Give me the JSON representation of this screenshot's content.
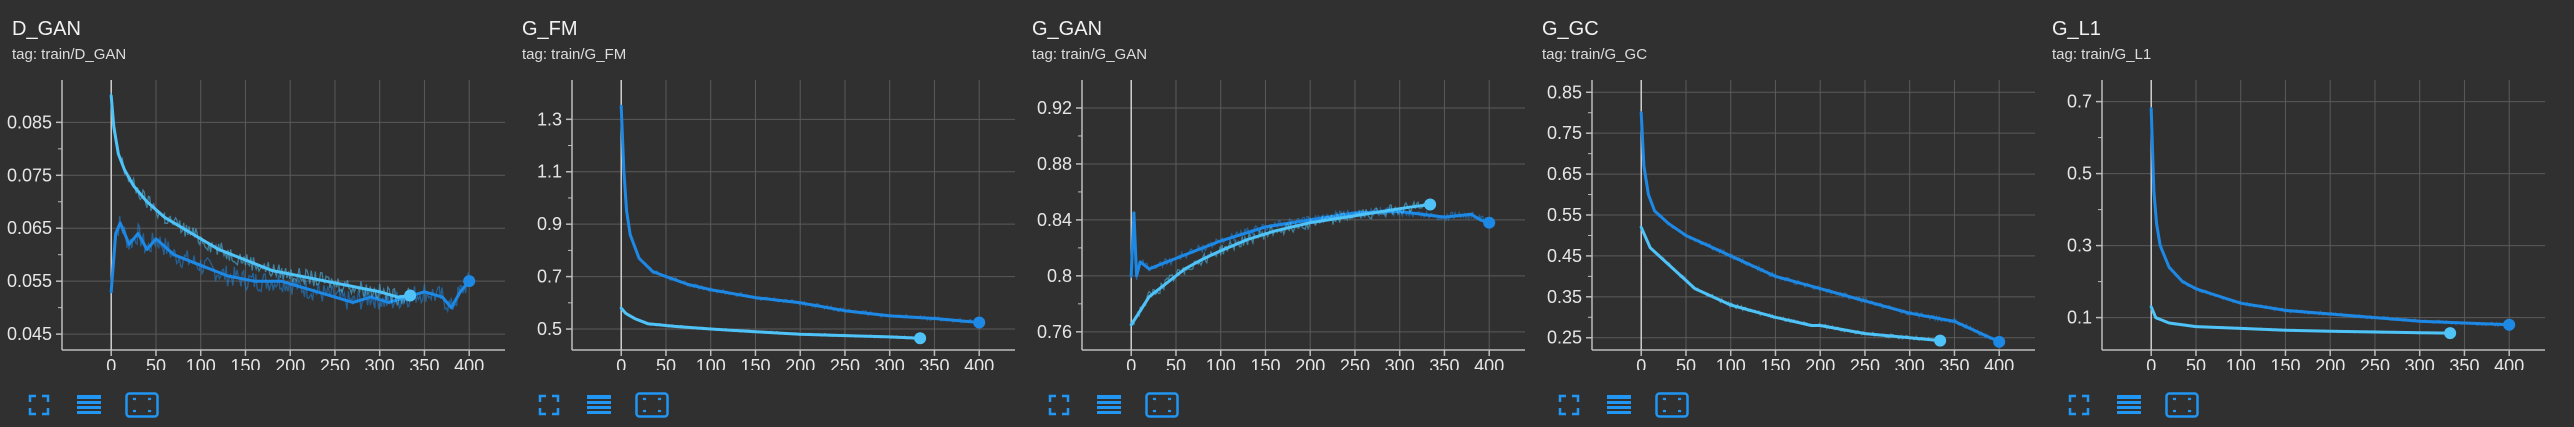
{
  "colors": {
    "background": "#303030",
    "grid": "#5a5a5a",
    "axis": "#bdbdbd",
    "series_dark": "#1e88e5",
    "series_light": "#4fc3f7",
    "icon": "#2196f3"
  },
  "toolbar_icons": [
    "fullscreen-icon",
    "data-table-icon",
    "fit-domain-icon"
  ],
  "chart_data": [
    {
      "type": "line",
      "title": "D_GAN",
      "subtitle": "tag: train/D_GAN",
      "x_ticks": [
        0,
        50,
        100,
        150,
        200,
        250,
        300,
        350,
        400
      ],
      "y_ticks": [
        "0.045",
        "0.055",
        "0.065",
        "0.075",
        "0.085"
      ],
      "xlim": [
        -55,
        440
      ],
      "ylim": [
        0.042,
        0.093
      ],
      "series": [
        {
          "color": "#1e88e5",
          "noise": 0.002,
          "points": [
            [
              0,
              0.053
            ],
            [
              5,
              0.064
            ],
            [
              10,
              0.066
            ],
            [
              20,
              0.062
            ],
            [
              30,
              0.064
            ],
            [
              40,
              0.061
            ],
            [
              50,
              0.063
            ],
            [
              70,
              0.06
            ],
            [
              100,
              0.058
            ],
            [
              130,
              0.056
            ],
            [
              160,
              0.055
            ],
            [
              190,
              0.055
            ],
            [
              210,
              0.054
            ],
            [
              230,
              0.053
            ],
            [
              250,
              0.052
            ],
            [
              270,
              0.051
            ],
            [
              290,
              0.052
            ],
            [
              310,
              0.051
            ],
            [
              330,
              0.052
            ],
            [
              350,
              0.053
            ],
            [
              370,
              0.052
            ],
            [
              380,
              0.05
            ],
            [
              390,
              0.053
            ],
            [
              400,
              0.055
            ]
          ]
        },
        {
          "color": "#4fc3f7",
          "noise": 0.0015,
          "points": [
            [
              0,
              0.09
            ],
            [
              3,
              0.084
            ],
            [
              8,
              0.079
            ],
            [
              15,
              0.076
            ],
            [
              25,
              0.073
            ],
            [
              40,
              0.07
            ],
            [
              60,
              0.067
            ],
            [
              90,
              0.064
            ],
            [
              120,
              0.061
            ],
            [
              150,
              0.059
            ],
            [
              180,
              0.057
            ],
            [
              210,
              0.056
            ],
            [
              240,
              0.055
            ],
            [
              270,
              0.054
            ],
            [
              300,
              0.053
            ],
            [
              320,
              0.052
            ],
            [
              334,
              0.0523
            ]
          ]
        }
      ]
    },
    {
      "type": "line",
      "title": "G_FM",
      "subtitle": "tag: train/G_FM",
      "x_ticks": [
        0,
        50,
        100,
        150,
        200,
        250,
        300,
        350,
        400
      ],
      "y_ticks": [
        "0.5",
        "0.7",
        "0.9",
        "1.1",
        "1.3"
      ],
      "xlim": [
        -55,
        440
      ],
      "ylim": [
        0.42,
        1.45
      ],
      "series": [
        {
          "color": "#1e88e5",
          "noise": 0.008,
          "points": [
            [
              0,
              1.35
            ],
            [
              3,
              1.1
            ],
            [
              6,
              0.95
            ],
            [
              10,
              0.86
            ],
            [
              20,
              0.77
            ],
            [
              35,
              0.72
            ],
            [
              50,
              0.7
            ],
            [
              75,
              0.67
            ],
            [
              100,
              0.65
            ],
            [
              150,
              0.62
            ],
            [
              200,
              0.6
            ],
            [
              250,
              0.57
            ],
            [
              300,
              0.55
            ],
            [
              350,
              0.54
            ],
            [
              400,
              0.525
            ]
          ]
        },
        {
          "color": "#4fc3f7",
          "noise": 0.005,
          "points": [
            [
              0,
              0.58
            ],
            [
              5,
              0.56
            ],
            [
              15,
              0.54
            ],
            [
              30,
              0.52
            ],
            [
              60,
              0.51
            ],
            [
              100,
              0.5
            ],
            [
              150,
              0.49
            ],
            [
              200,
              0.48
            ],
            [
              250,
              0.475
            ],
            [
              300,
              0.47
            ],
            [
              334,
              0.465
            ]
          ]
        }
      ]
    },
    {
      "type": "line",
      "title": "G_GAN",
      "subtitle": "tag: train/G_GAN",
      "x_ticks": [
        0,
        50,
        100,
        150,
        200,
        250,
        300,
        350,
        400
      ],
      "y_ticks": [
        "0.76",
        "0.8",
        "0.84",
        "0.88",
        "0.92"
      ],
      "xlim": [
        -55,
        440
      ],
      "ylim": [
        0.747,
        0.94
      ],
      "series": [
        {
          "color": "#1e88e5",
          "noise": 0.003,
          "points": [
            [
              0,
              0.8
            ],
            [
              3,
              0.845
            ],
            [
              6,
              0.8
            ],
            [
              10,
              0.81
            ],
            [
              20,
              0.805
            ],
            [
              40,
              0.81
            ],
            [
              60,
              0.815
            ],
            [
              80,
              0.82
            ],
            [
              100,
              0.825
            ],
            [
              150,
              0.835
            ],
            [
              200,
              0.84
            ],
            [
              250,
              0.845
            ],
            [
              300,
              0.846
            ],
            [
              350,
              0.842
            ],
            [
              380,
              0.844
            ],
            [
              390,
              0.84
            ],
            [
              400,
              0.838
            ]
          ]
        },
        {
          "color": "#4fc3f7",
          "noise": 0.004,
          "points": [
            [
              0,
              0.765
            ],
            [
              10,
              0.775
            ],
            [
              20,
              0.785
            ],
            [
              40,
              0.795
            ],
            [
              60,
              0.805
            ],
            [
              80,
              0.812
            ],
            [
              100,
              0.818
            ],
            [
              130,
              0.826
            ],
            [
              160,
              0.832
            ],
            [
              200,
              0.838
            ],
            [
              240,
              0.842
            ],
            [
              280,
              0.846
            ],
            [
              310,
              0.849
            ],
            [
              334,
              0.851
            ]
          ]
        }
      ]
    },
    {
      "type": "line",
      "title": "G_GC",
      "subtitle": "tag: train/G_GC",
      "x_ticks": [
        0,
        50,
        100,
        150,
        200,
        250,
        300,
        350,
        400
      ],
      "y_ticks": [
        "0.25",
        "0.35",
        "0.45",
        "0.55",
        "0.65",
        "0.75",
        "0.85"
      ],
      "xlim": [
        -55,
        440
      ],
      "ylim": [
        0.22,
        0.88
      ],
      "series": [
        {
          "color": "#1e88e5",
          "noise": 0.006,
          "points": [
            [
              0,
              0.8
            ],
            [
              3,
              0.67
            ],
            [
              8,
              0.6
            ],
            [
              15,
              0.56
            ],
            [
              30,
              0.53
            ],
            [
              50,
              0.5
            ],
            [
              100,
              0.45
            ],
            [
              150,
              0.4
            ],
            [
              200,
              0.37
            ],
            [
              250,
              0.34
            ],
            [
              300,
              0.31
            ],
            [
              350,
              0.29
            ],
            [
              380,
              0.26
            ],
            [
              400,
              0.24
            ]
          ]
        },
        {
          "color": "#4fc3f7",
          "noise": 0.005,
          "points": [
            [
              0,
              0.52
            ],
            [
              10,
              0.47
            ],
            [
              30,
              0.43
            ],
            [
              60,
              0.37
            ],
            [
              100,
              0.33
            ],
            [
              150,
              0.3
            ],
            [
              190,
              0.28
            ],
            [
              200,
              0.28
            ],
            [
              250,
              0.26
            ],
            [
              300,
              0.25
            ],
            [
              334,
              0.243
            ]
          ]
        }
      ]
    },
    {
      "type": "line",
      "title": "G_L1",
      "subtitle": "tag: train/G_L1",
      "x_ticks": [
        0,
        50,
        100,
        150,
        200,
        250,
        300,
        350,
        400
      ],
      "y_ticks": [
        "0.1",
        "0.3",
        "0.5",
        "0.7"
      ],
      "xlim": [
        -55,
        440
      ],
      "ylim": [
        0.01,
        0.76
      ],
      "series": [
        {
          "color": "#1e88e5",
          "noise": 0.005,
          "points": [
            [
              0,
              0.68
            ],
            [
              3,
              0.45
            ],
            [
              6,
              0.36
            ],
            [
              10,
              0.3
            ],
            [
              20,
              0.24
            ],
            [
              35,
              0.2
            ],
            [
              50,
              0.18
            ],
            [
              75,
              0.16
            ],
            [
              100,
              0.14
            ],
            [
              150,
              0.12
            ],
            [
              200,
              0.11
            ],
            [
              250,
              0.1
            ],
            [
              300,
              0.09
            ],
            [
              350,
              0.085
            ],
            [
              400,
              0.08
            ]
          ]
        },
        {
          "color": "#4fc3f7",
          "noise": 0.003,
          "points": [
            [
              0,
              0.13
            ],
            [
              5,
              0.1
            ],
            [
              20,
              0.085
            ],
            [
              50,
              0.075
            ],
            [
              100,
              0.07
            ],
            [
              150,
              0.065
            ],
            [
              200,
              0.062
            ],
            [
              250,
              0.06
            ],
            [
              300,
              0.058
            ],
            [
              334,
              0.057
            ]
          ]
        }
      ]
    }
  ]
}
